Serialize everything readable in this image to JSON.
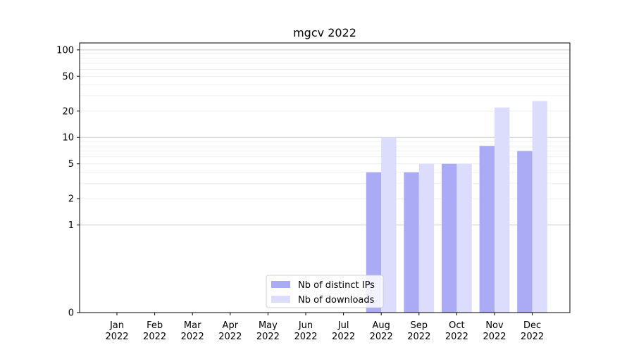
{
  "chart_data": {
    "type": "bar",
    "title": "mgcv 2022",
    "xlabel": "",
    "ylabel": "",
    "categories": [
      "Jan\n2022",
      "Feb\n2022",
      "Mar\n2022",
      "Apr\n2022",
      "May\n2022",
      "Jun\n2022",
      "Jul\n2022",
      "Aug\n2022",
      "Sep\n2022",
      "Oct\n2022",
      "Nov\n2022",
      "Dec\n2022"
    ],
    "series": [
      {
        "name": "Nb of distinct IPs",
        "color": "#aaaaf5",
        "values": [
          0,
          0,
          0,
          0,
          0,
          0,
          0,
          4,
          4,
          5,
          8,
          7
        ]
      },
      {
        "name": "Nb of downloads",
        "color": "#dcdcfc",
        "values": [
          0,
          0,
          0,
          0,
          0,
          0,
          0,
          10,
          5,
          5,
          22,
          26
        ]
      }
    ],
    "yscale": "symlog",
    "yticks": [
      0,
      1,
      2,
      5,
      10,
      20,
      50,
      100
    ],
    "ylim": [
      0,
      120
    ],
    "grid": true,
    "legend_position": "lower-center"
  }
}
